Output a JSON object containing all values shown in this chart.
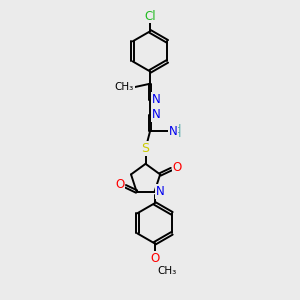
{
  "bg_color": "#ebebeb",
  "bond_color": "#000000",
  "bond_lw": 1.4,
  "atom_colors": {
    "N": "#0000ee",
    "O": "#ff0000",
    "S": "#cccc00",
    "Cl": "#22bb22",
    "C": "#000000",
    "H": "#55aaaa"
  },
  "font_size": 8.5,
  "figsize": [
    3.0,
    3.0
  ],
  "dpi": 100
}
